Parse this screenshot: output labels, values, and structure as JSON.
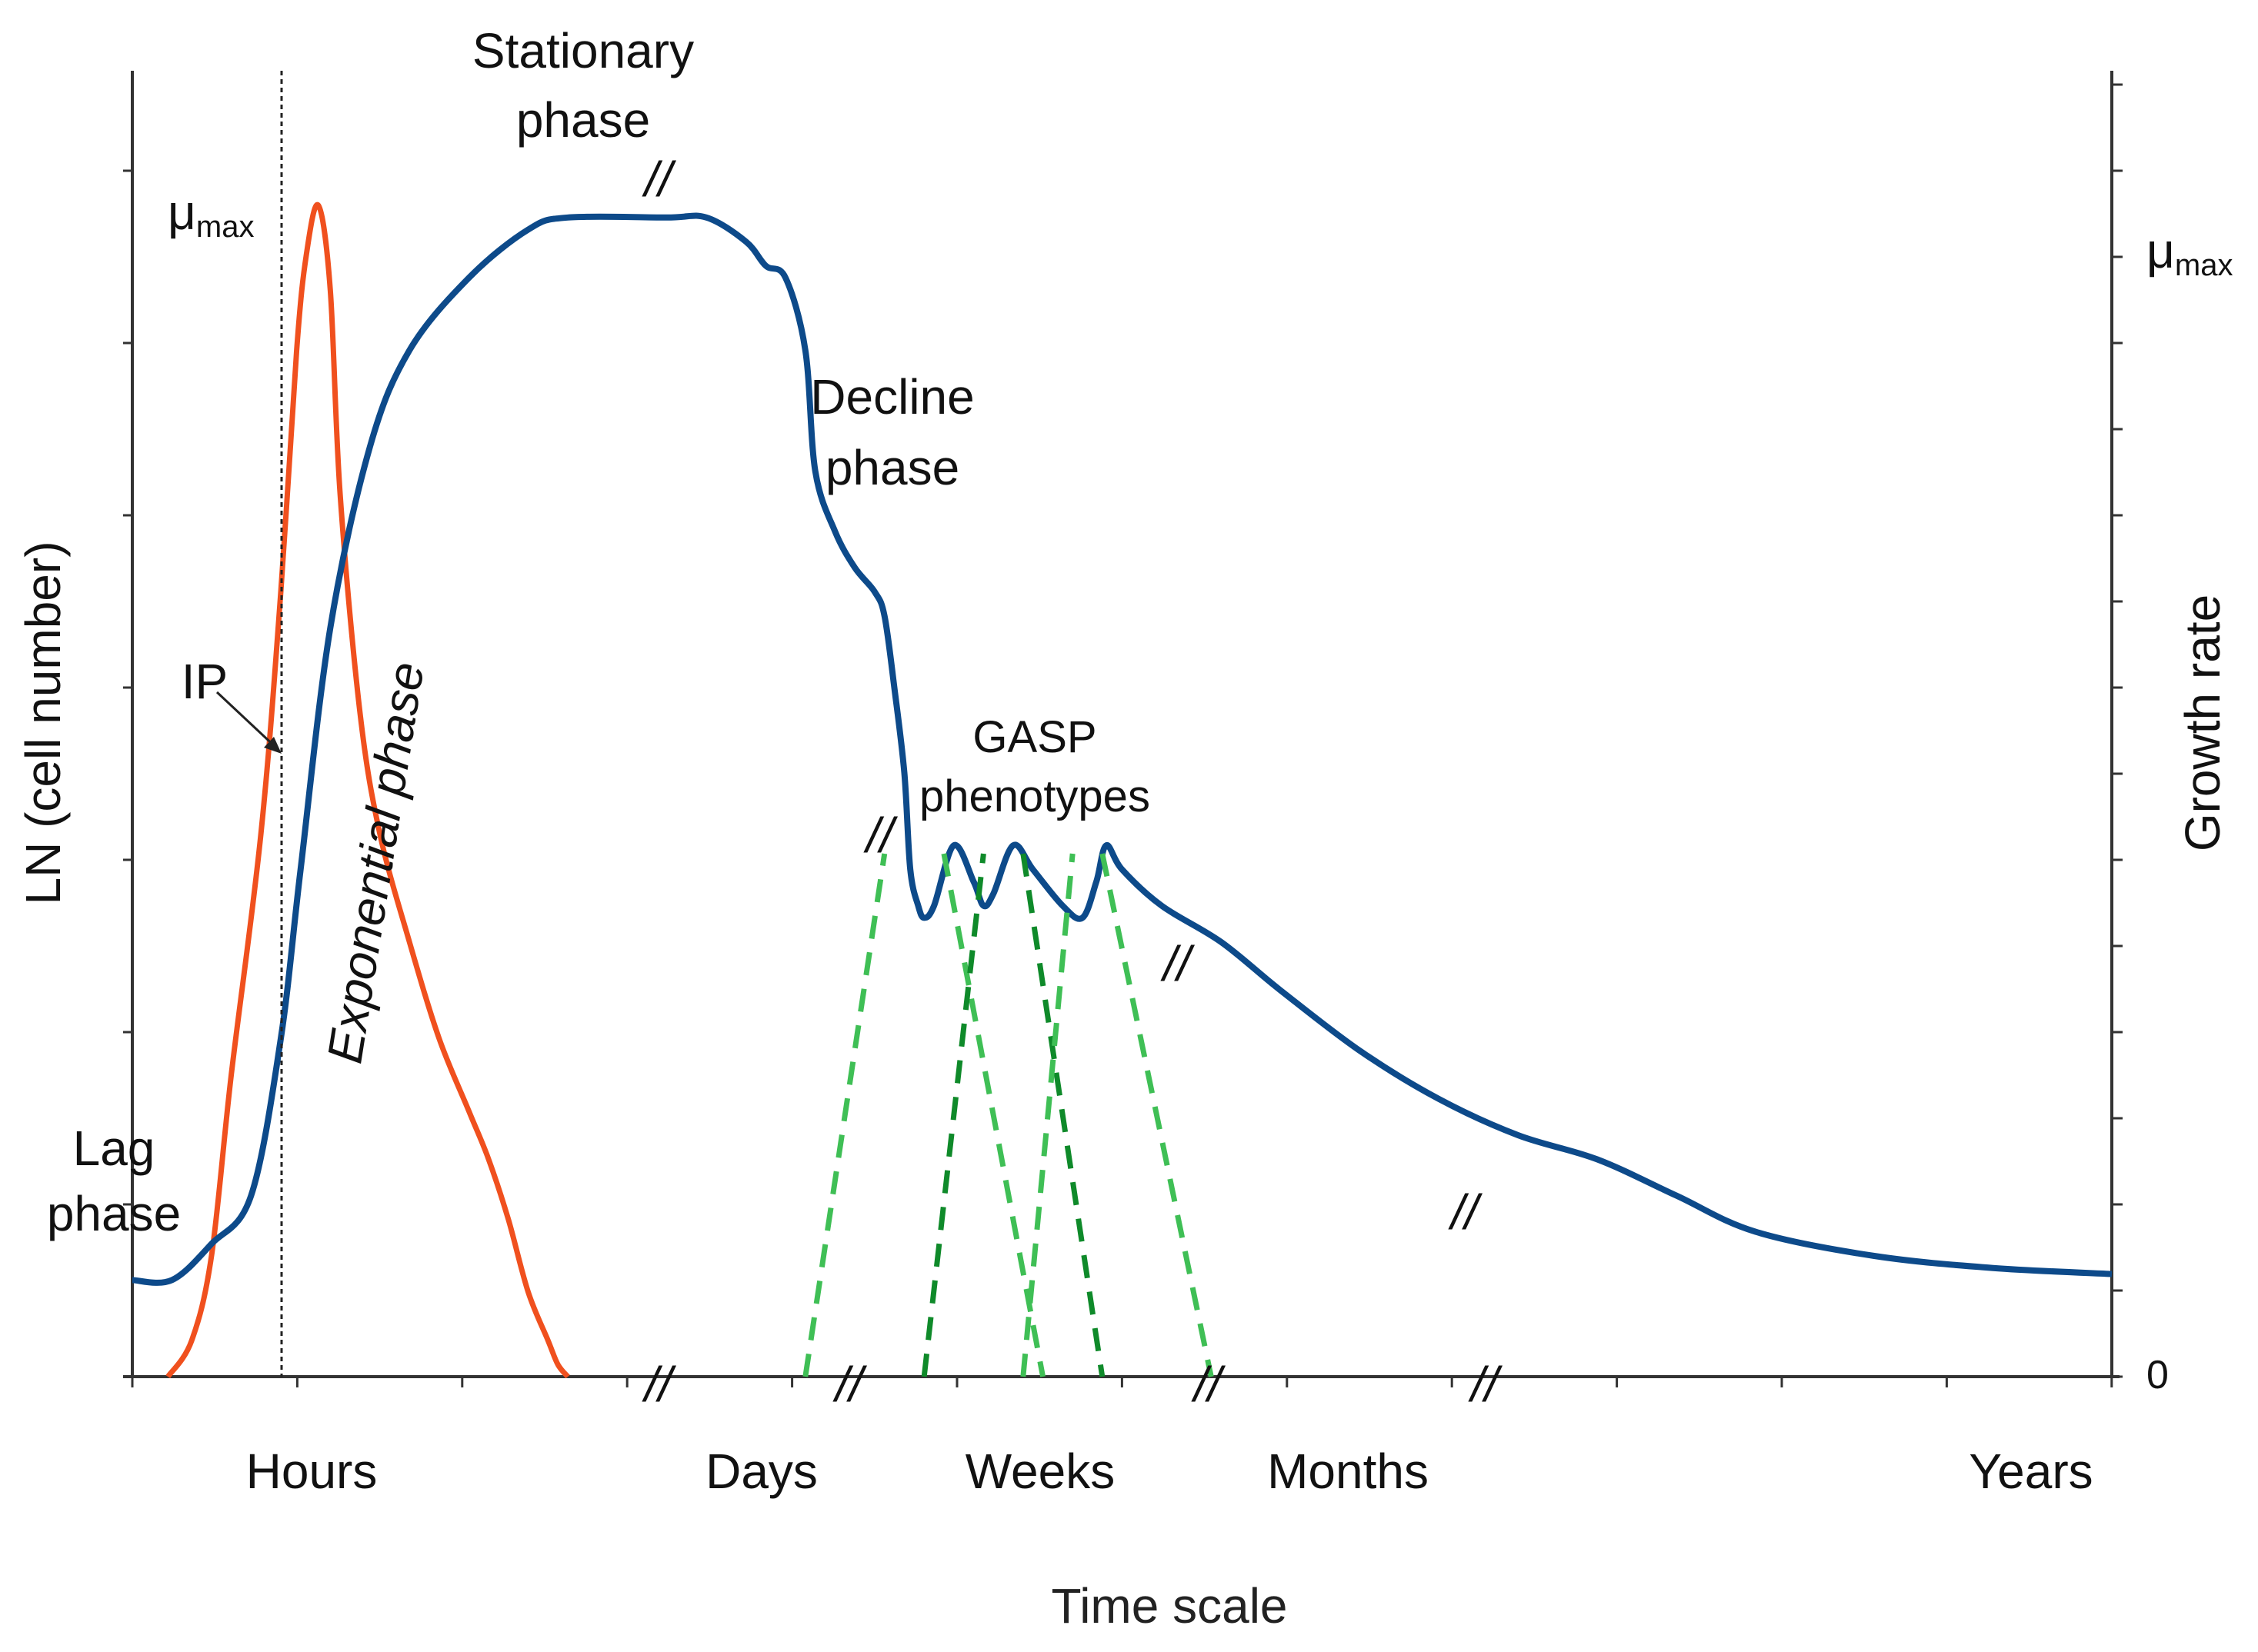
{
  "axes": {
    "left_title": "LN (cell number)",
    "right_title": "Growth rate",
    "x_title": "Time scale",
    "right_tick_top": "μ",
    "right_tick_top_sub": "max",
    "right_tick_zero": "0"
  },
  "x_categories": [
    "Hours",
    "Days",
    "Weeks",
    "Months",
    "Years"
  ],
  "labels": {
    "stationary_line1": "Stationary",
    "stationary_line2": "phase",
    "decline_line1": "Decline",
    "decline_line2": "phase",
    "gasp_line1": "GASP",
    "gasp_line2": "phenotypes",
    "lag_line1": "Lag",
    "lag_line2": "phase",
    "exponential": "Exponential phase",
    "ip": "IP",
    "mu_max": "μ",
    "mu_max_sub": "max"
  },
  "break_mark": "//",
  "colors": {
    "cell_number_curve": "#0d4a8a",
    "growth_rate_curve": "#f0501e",
    "gasp_light": "#3fbf55",
    "gasp_dark": "#0f8a2a",
    "axis": "#333333"
  },
  "chart_data": {
    "type": "line",
    "title": "",
    "xlabel": "Time scale",
    "ylabel": "LN (cell number)",
    "y2label": "Growth rate",
    "x_categories": [
      "Hours",
      "Days",
      "Weeks",
      "Months",
      "Years"
    ],
    "series": [
      {
        "name": "LN (cell number)",
        "points": [
          [
            0.0,
            0.08
          ],
          [
            0.02,
            0.08
          ],
          [
            0.04,
            0.11
          ],
          [
            0.06,
            0.15
          ],
          [
            0.075,
            0.28
          ],
          [
            0.085,
            0.42
          ],
          [
            0.1,
            0.62
          ],
          [
            0.12,
            0.77
          ],
          [
            0.14,
            0.85
          ],
          [
            0.17,
            0.91
          ],
          [
            0.2,
            0.95
          ],
          [
            0.22,
            0.96
          ],
          [
            0.27,
            0.96
          ],
          [
            0.29,
            0.96
          ],
          [
            0.31,
            0.94
          ],
          [
            0.32,
            0.92
          ],
          [
            0.33,
            0.91
          ],
          [
            0.34,
            0.85
          ],
          [
            0.345,
            0.75
          ],
          [
            0.355,
            0.7
          ],
          [
            0.365,
            0.67
          ],
          [
            0.375,
            0.65
          ],
          [
            0.38,
            0.63
          ],
          [
            0.385,
            0.57
          ],
          [
            0.39,
            0.5
          ],
          [
            0.393,
            0.42
          ],
          [
            0.397,
            0.39
          ],
          [
            0.4,
            0.38
          ],
          [
            0.405,
            0.39
          ],
          [
            0.415,
            0.44
          ],
          [
            0.425,
            0.41
          ],
          [
            0.43,
            0.39
          ],
          [
            0.435,
            0.4
          ],
          [
            0.445,
            0.44
          ],
          [
            0.455,
            0.42
          ],
          [
            0.47,
            0.39
          ],
          [
            0.48,
            0.38
          ],
          [
            0.487,
            0.41
          ],
          [
            0.492,
            0.44
          ],
          [
            0.5,
            0.42
          ],
          [
            0.52,
            0.39
          ],
          [
            0.55,
            0.36
          ],
          [
            0.58,
            0.32
          ],
          [
            0.62,
            0.27
          ],
          [
            0.66,
            0.23
          ],
          [
            0.7,
            0.2
          ],
          [
            0.74,
            0.18
          ],
          [
            0.78,
            0.15
          ],
          [
            0.82,
            0.12
          ],
          [
            0.88,
            0.1
          ],
          [
            0.94,
            0.09
          ],
          [
            1.0,
            0.085
          ]
        ]
      },
      {
        "name": "Growth rate",
        "points": [
          [
            0.018,
            0.0
          ],
          [
            0.03,
            0.03
          ],
          [
            0.04,
            0.1
          ],
          [
            0.05,
            0.25
          ],
          [
            0.065,
            0.45
          ],
          [
            0.075,
            0.65
          ],
          [
            0.083,
            0.85
          ],
          [
            0.088,
            0.93
          ],
          [
            0.094,
            0.97
          ],
          [
            0.1,
            0.9
          ],
          [
            0.105,
            0.73
          ],
          [
            0.115,
            0.55
          ],
          [
            0.125,
            0.45
          ],
          [
            0.14,
            0.36
          ],
          [
            0.155,
            0.28
          ],
          [
            0.17,
            0.22
          ],
          [
            0.18,
            0.18
          ],
          [
            0.19,
            0.13
          ],
          [
            0.2,
            0.07
          ],
          [
            0.21,
            0.03
          ],
          [
            0.215,
            0.01
          ],
          [
            0.22,
            0.0
          ]
        ]
      }
    ],
    "gasp_peaks": [
      {
        "shade": "light",
        "rise": [
          0.34,
          0.38
        ],
        "fall": [
          0.41,
          0.46
        ]
      },
      {
        "shade": "dark",
        "rise": [
          0.4,
          0.43
        ],
        "fall": [
          0.45,
          0.49
        ]
      },
      {
        "shade": "light",
        "rise": [
          0.45,
          0.475
        ],
        "fall": [
          0.49,
          0.545
        ]
      }
    ]
  }
}
